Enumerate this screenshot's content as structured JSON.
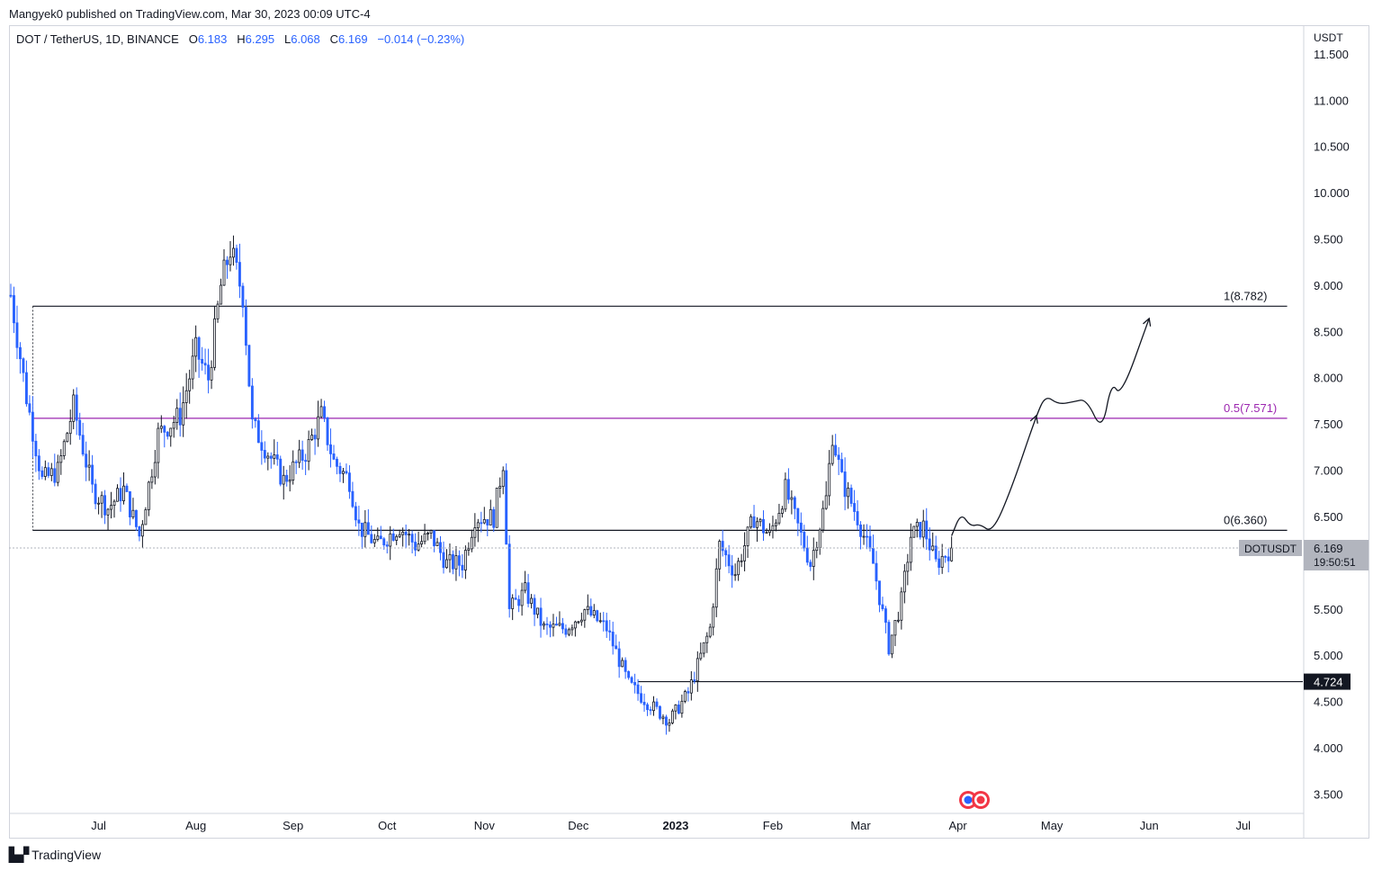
{
  "publisher": "Mangyek0 published on TradingView.com, Mar 30, 2023 00:09 UTC-4",
  "legend": {
    "symbol": "DOT / TetherUS, 1D, BINANCE",
    "open_label": "O",
    "open": "6.183",
    "high_label": "H",
    "high": "6.295",
    "low_label": "L",
    "low": "6.068",
    "close_label": "C",
    "close": "6.169",
    "change": "−0.014 (−0.23%)"
  },
  "footer": {
    "brand": "TradingView"
  },
  "chart_data": {
    "type": "candlestick",
    "symbol": "DOTUSDT",
    "currency_label": "USDT",
    "ylim": [
      3.3,
      11.8
    ],
    "y_ticks": [
      "11.500",
      "11.000",
      "10.500",
      "10.000",
      "9.500",
      "9.000",
      "8.500",
      "8.000",
      "7.500",
      "7.000",
      "6.500",
      "6.000",
      "5.500",
      "5.000",
      "4.500",
      "4.000",
      "3.500"
    ],
    "x_range": [
      "2022-06-03",
      "2023-07-20"
    ],
    "x_ticks": [
      {
        "label": "Jul",
        "date": "2022-07-01",
        "bold": false
      },
      {
        "label": "Aug",
        "date": "2022-08-01",
        "bold": false
      },
      {
        "label": "Sep",
        "date": "2022-09-01",
        "bold": false
      },
      {
        "label": "Oct",
        "date": "2022-10-01",
        "bold": false
      },
      {
        "label": "Nov",
        "date": "2022-11-01",
        "bold": false
      },
      {
        "label": "Dec",
        "date": "2022-12-01",
        "bold": false
      },
      {
        "label": "2023",
        "date": "2023-01-01",
        "bold": true
      },
      {
        "label": "Feb",
        "date": "2023-02-01",
        "bold": false
      },
      {
        "label": "Mar",
        "date": "2023-03-01",
        "bold": false
      },
      {
        "label": "Apr",
        "date": "2023-04-01",
        "bold": false
      },
      {
        "label": "May",
        "date": "2023-05-01",
        "bold": false
      },
      {
        "label": "Jun",
        "date": "2023-06-01",
        "bold": false
      },
      {
        "label": "Jul",
        "date": "2023-07-01",
        "bold": false
      }
    ],
    "price_path": [
      [
        "2022-06-03",
        8.9
      ],
      [
        "2022-06-08",
        7.8
      ],
      [
        "2022-06-13",
        6.9
      ],
      [
        "2022-06-18",
        7.0
      ],
      [
        "2022-06-23",
        7.7
      ],
      [
        "2022-06-29",
        6.8
      ],
      [
        "2022-07-04",
        6.6
      ],
      [
        "2022-07-09",
        6.8
      ],
      [
        "2022-07-14",
        6.3
      ],
      [
        "2022-07-20",
        7.4
      ],
      [
        "2022-07-27",
        7.6
      ],
      [
        "2022-08-01",
        8.3
      ],
      [
        "2022-08-05",
        8.0
      ],
      [
        "2022-08-09",
        9.0
      ],
      [
        "2022-08-12",
        9.4
      ],
      [
        "2022-08-16",
        8.9
      ],
      [
        "2022-08-19",
        7.5
      ],
      [
        "2022-08-24",
        7.2
      ],
      [
        "2022-08-29",
        6.9
      ],
      [
        "2022-09-05",
        7.2
      ],
      [
        "2022-09-10",
        7.6
      ],
      [
        "2022-09-14",
        7.1
      ],
      [
        "2022-09-19",
        6.9
      ],
      [
        "2022-09-22",
        6.4
      ],
      [
        "2022-09-28",
        6.2
      ],
      [
        "2022-10-05",
        6.4
      ],
      [
        "2022-10-10",
        6.2
      ],
      [
        "2022-10-15",
        6.3
      ],
      [
        "2022-10-20",
        6.0
      ],
      [
        "2022-10-25",
        6.0
      ],
      [
        "2022-10-29",
        6.5
      ],
      [
        "2022-11-04",
        6.5
      ],
      [
        "2022-11-07",
        7.1
      ],
      [
        "2022-11-09",
        5.5
      ],
      [
        "2022-11-14",
        5.7
      ],
      [
        "2022-11-20",
        5.3
      ],
      [
        "2022-11-27",
        5.3
      ],
      [
        "2022-12-03",
        5.5
      ],
      [
        "2022-12-10",
        5.3
      ],
      [
        "2022-12-17",
        4.7
      ],
      [
        "2022-12-23",
        4.5
      ],
      [
        "2022-12-30",
        4.3
      ],
      [
        "2023-01-05",
        4.6
      ],
      [
        "2023-01-12",
        5.3
      ],
      [
        "2023-01-15",
        6.2
      ],
      [
        "2023-01-20",
        5.9
      ],
      [
        "2023-01-26",
        6.5
      ],
      [
        "2023-01-31",
        6.3
      ],
      [
        "2023-02-05",
        6.8
      ],
      [
        "2023-02-09",
        6.4
      ],
      [
        "2023-02-13",
        6.0
      ],
      [
        "2023-02-18",
        6.7
      ],
      [
        "2023-02-20",
        7.4
      ],
      [
        "2023-02-23",
        6.9
      ],
      [
        "2023-02-28",
        6.5
      ],
      [
        "2023-03-05",
        6.0
      ],
      [
        "2023-03-10",
        5.1
      ],
      [
        "2023-03-14",
        5.6
      ],
      [
        "2023-03-17",
        6.3
      ],
      [
        "2023-03-21",
        6.4
      ],
      [
        "2023-03-25",
        6.0
      ],
      [
        "2023-03-30",
        6.169
      ]
    ],
    "drawn_path": [
      [
        "2023-03-30",
        6.3
      ],
      [
        "2023-04-02",
        6.55
      ],
      [
        "2023-04-05",
        6.4
      ],
      [
        "2023-04-08",
        6.43
      ],
      [
        "2023-04-12",
        6.33
      ],
      [
        "2023-04-18",
        6.8
      ],
      [
        "2023-04-26",
        7.6
      ],
      [
        "2023-04-29",
        7.82
      ],
      [
        "2023-05-03",
        7.72
      ],
      [
        "2023-05-08",
        7.75
      ],
      [
        "2023-05-12",
        7.78
      ],
      [
        "2023-05-17",
        7.42
      ],
      [
        "2023-05-20",
        7.97
      ],
      [
        "2023-05-23",
        7.8
      ],
      [
        "2023-06-01",
        8.65
      ]
    ],
    "levels": [
      {
        "label": "1(8.782)",
        "value": 8.782,
        "color": "#131722",
        "from": "2022-06-10",
        "to": "2023-07-15"
      },
      {
        "label": "0.5(7.571)",
        "value": 7.571,
        "color": "#9c27b0",
        "from": "2022-06-10",
        "to": "2023-07-15"
      },
      {
        "label": "0(6.360)",
        "value": 6.36,
        "color": "#131722",
        "from": "2022-06-10",
        "to": "2023-07-15"
      },
      {
        "label": "4.724",
        "value": 4.724,
        "color": "#131722",
        "from": "2022-12-20",
        "to": "2023-07-20",
        "axis_badge": true
      }
    ],
    "last_price": {
      "symbol": "DOTUSDT",
      "value": 6.169,
      "value_text": "6.169",
      "countdown": "19:50:51",
      "color": "#b2b5be"
    },
    "up_color": "#131722",
    "down_color": "#2962ff"
  }
}
